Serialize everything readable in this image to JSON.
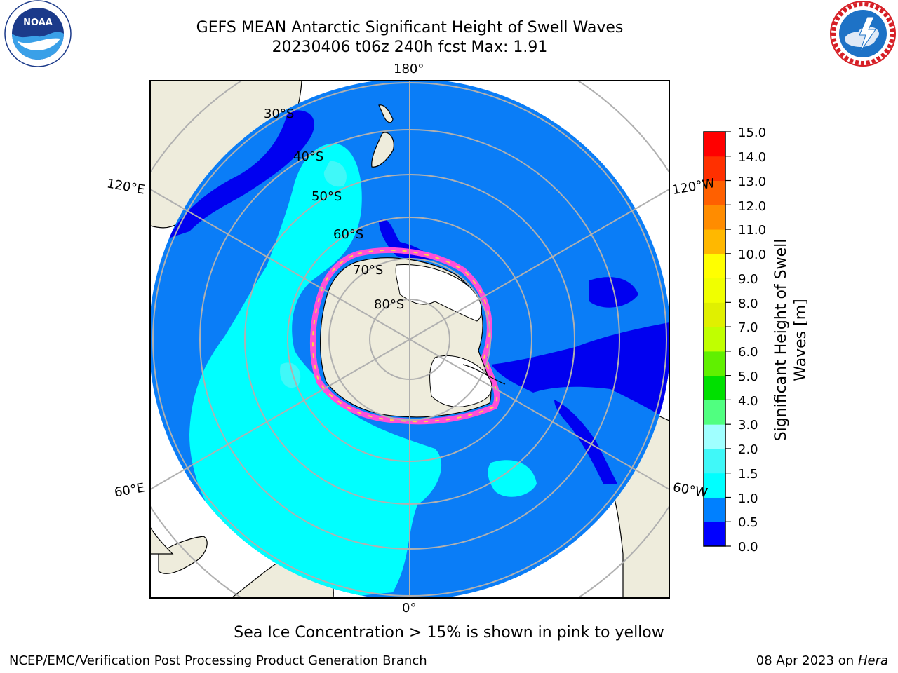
{
  "header": {
    "title_line1": "GEFS MEAN Antarctic Significant Height of Swell Waves",
    "title_line2": "20230406 t06z 240h fcst   Max: 1.91"
  },
  "map": {
    "projection": "south-polar-stereographic",
    "longitude_labels": {
      "top": "180°",
      "bottom": "0°",
      "upper_left": "120°E",
      "upper_right": "120°W",
      "lower_left": "60°E",
      "lower_right": "60°W"
    },
    "latitude_labels": [
      "30°S",
      "40°S",
      "50°S",
      "60°S",
      "70°S",
      "80°S"
    ],
    "colors": {
      "land": "#eeecdc",
      "ocean_mean": "#0a7df7",
      "grid": "#b0b0b0",
      "antarctic_ice_shelf": "#ffffff"
    },
    "note": "Sea Ice Concentration > 15% is shown in pink to yellow"
  },
  "colorbar": {
    "label": "Significant Height of Swell Waves [m]",
    "label_line1": "Significant Height of Swell",
    "label_line2": "Waves [m]",
    "ticks": [
      "15.0",
      "14.0",
      "13.0",
      "12.0",
      "11.0",
      "10.0",
      "9.0",
      "8.0",
      "7.0",
      "6.0",
      "5.0",
      "4.0",
      "3.0",
      "2.0",
      "1.5",
      "1.0",
      "0.5",
      "0.0"
    ],
    "bins": [
      {
        "range": "0.0-0.5",
        "color": "#0000ff"
      },
      {
        "range": "0.5-1.0",
        "color": "#0080ff"
      },
      {
        "range": "1.0-1.5",
        "color": "#00ffff"
      },
      {
        "range": "1.5-2.0",
        "color": "#40f8f8"
      },
      {
        "range": "2.0-3.0",
        "color": "#a0ffff"
      },
      {
        "range": "3.0-4.0",
        "color": "#50ff80"
      },
      {
        "range": "4.0-5.0",
        "color": "#00e000"
      },
      {
        "range": "5.0-6.0",
        "color": "#60f000"
      },
      {
        "range": "6.0-7.0",
        "color": "#c0ff00"
      },
      {
        "range": "7.0-8.0",
        "color": "#e0f000"
      },
      {
        "range": "8.0-9.0",
        "color": "#f0ff00"
      },
      {
        "range": "9.0-10.0",
        "color": "#ffff00"
      },
      {
        "range": "10.0-11.0",
        "color": "#ffb800"
      },
      {
        "range": "11.0-12.0",
        "color": "#ff8c00"
      },
      {
        "range": "12.0-13.0",
        "color": "#ff6000"
      },
      {
        "range": "13.0-14.0",
        "color": "#ff3000"
      },
      {
        "range": "14.0-15.0",
        "color": "#ff0000"
      }
    ]
  },
  "footer": {
    "credit": "NCEP/EMC/Verification Post Processing Product Generation Branch",
    "date": "08 Apr 2023 on ",
    "host": "Hera"
  },
  "logos": {
    "left": {
      "icon": "noaa-logo",
      "text": "NOAA"
    },
    "right": {
      "icon": "national-weather-service-logo"
    }
  }
}
